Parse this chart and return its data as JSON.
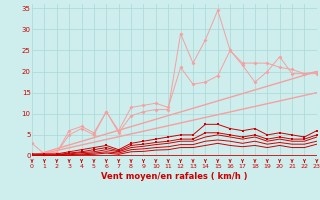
{
  "x": [
    0,
    1,
    2,
    3,
    4,
    5,
    6,
    7,
    8,
    9,
    10,
    11,
    12,
    13,
    14,
    15,
    16,
    17,
    18,
    19,
    20,
    21,
    22,
    23
  ],
  "line_pink1": [
    3.0,
    0.5,
    0.8,
    6.0,
    7.0,
    5.5,
    10.5,
    6.0,
    11.5,
    12.0,
    12.5,
    11.5,
    21.0,
    17.0,
    17.5,
    19.0,
    25.0,
    21.5,
    17.5,
    20.0,
    23.5,
    19.5,
    19.5,
    19.5
  ],
  "line_pink2": [
    0.5,
    0.5,
    0.8,
    5.0,
    6.5,
    5.0,
    10.5,
    5.5,
    9.5,
    10.5,
    11.0,
    11.0,
    29.0,
    22.0,
    27.5,
    34.5,
    25.0,
    22.0,
    22.0,
    22.0,
    21.0,
    20.5,
    19.5,
    20.0
  ],
  "line_pink_lin1": [
    0.0,
    0.87,
    1.74,
    2.61,
    3.48,
    4.35,
    5.22,
    6.09,
    6.96,
    7.83,
    8.7,
    9.57,
    10.43,
    11.3,
    12.17,
    13.04,
    13.91,
    14.78,
    15.65,
    16.52,
    17.39,
    18.26,
    19.13,
    20.0
  ],
  "line_pink_lin2": [
    0.0,
    0.65,
    1.3,
    1.96,
    2.61,
    3.26,
    3.91,
    4.57,
    5.22,
    5.87,
    6.52,
    7.17,
    7.83,
    8.48,
    9.13,
    9.78,
    10.43,
    11.09,
    11.74,
    12.39,
    13.04,
    13.7,
    14.35,
    15.0
  ],
  "line_red1": [
    0.5,
    0.5,
    0.5,
    1.0,
    1.5,
    2.0,
    2.5,
    1.5,
    3.0,
    3.5,
    4.0,
    4.5,
    5.0,
    5.0,
    7.5,
    7.5,
    6.5,
    6.0,
    6.5,
    5.0,
    5.5,
    5.0,
    4.5,
    6.0
  ],
  "line_red2": [
    0.3,
    0.3,
    0.3,
    0.7,
    1.0,
    1.5,
    2.0,
    1.2,
    2.5,
    2.8,
    3.2,
    3.5,
    4.0,
    4.0,
    5.5,
    5.5,
    5.0,
    4.5,
    5.0,
    4.0,
    4.5,
    4.0,
    4.0,
    5.0
  ],
  "line_red3": [
    0.2,
    0.2,
    0.2,
    0.5,
    0.8,
    1.0,
    1.5,
    1.0,
    2.0,
    2.3,
    2.7,
    3.0,
    3.5,
    3.5,
    4.5,
    5.0,
    4.5,
    4.0,
    4.5,
    3.5,
    4.0,
    3.5,
    3.5,
    4.5
  ],
  "line_red4": [
    0.15,
    0.15,
    0.15,
    0.3,
    0.5,
    0.7,
    1.0,
    0.7,
    1.5,
    1.7,
    2.0,
    2.2,
    2.7,
    2.7,
    3.5,
    3.8,
    3.5,
    3.0,
    3.5,
    2.8,
    3.2,
    2.8,
    2.8,
    3.5
  ],
  "line_red5": [
    0.05,
    0.05,
    0.05,
    0.15,
    0.3,
    0.4,
    0.7,
    0.4,
    1.0,
    1.1,
    1.4,
    1.5,
    2.0,
    2.0,
    2.5,
    3.0,
    2.5,
    2.2,
    2.5,
    2.0,
    2.5,
    2.0,
    2.0,
    2.8
  ],
  "bg_color": "#ceeeed",
  "grid_color": "#aad8d8",
  "color_pink": "#f4a0a0",
  "color_red": "#cc0000",
  "xlabel": "Vent moyen/en rafales ( km/h )",
  "ylim": [
    0,
    36
  ],
  "xlim": [
    0,
    23
  ],
  "yticks": [
    0,
    5,
    10,
    15,
    20,
    25,
    30,
    35
  ],
  "xticks": [
    0,
    1,
    2,
    3,
    4,
    5,
    6,
    7,
    8,
    9,
    10,
    11,
    12,
    13,
    14,
    15,
    16,
    17,
    18,
    19,
    20,
    21,
    22,
    23
  ]
}
